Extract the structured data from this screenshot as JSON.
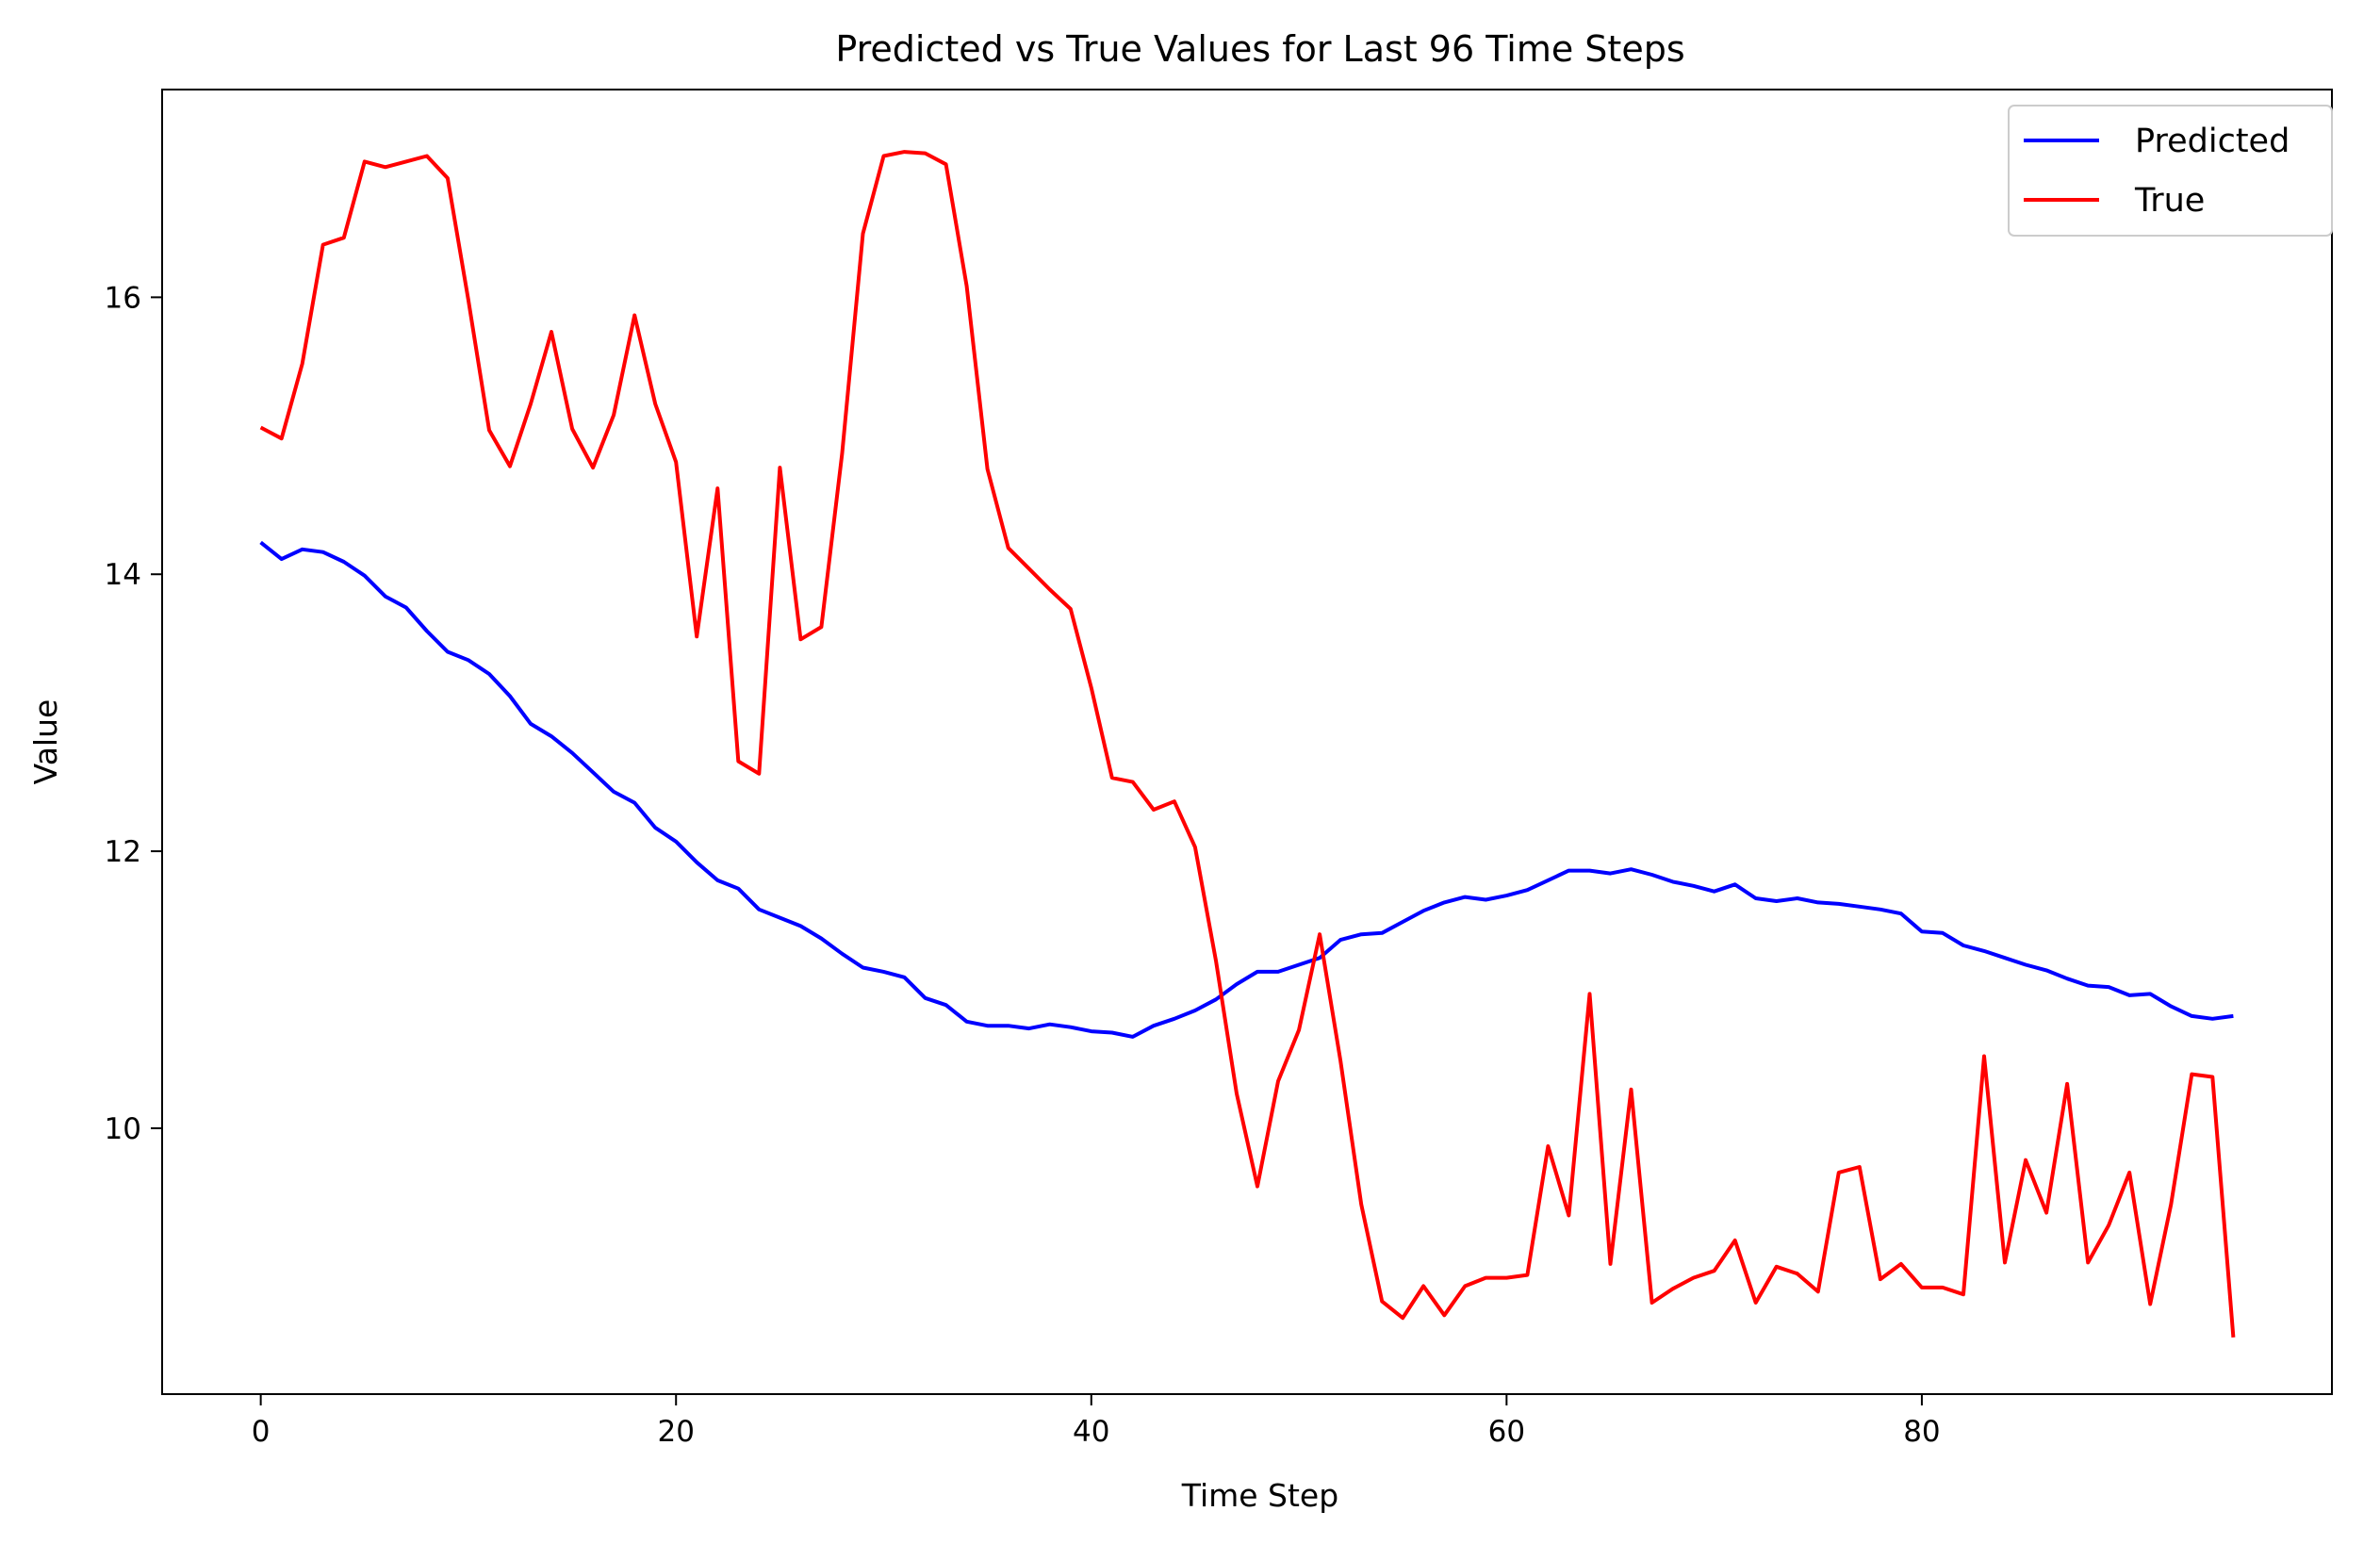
{
  "chart_data": {
    "type": "line",
    "title": "Predicted vs True Values for Last 96 Time Steps",
    "xlabel": "Time Step",
    "ylabel": "Value",
    "xlim": [
      -4.75,
      99.75
    ],
    "ylim": [
      8.08,
      17.5
    ],
    "xticks": [
      0,
      20,
      40,
      60,
      80
    ],
    "yticks": [
      10,
      12,
      14,
      16
    ],
    "grid": false,
    "legend_position": "top-right",
    "colors": {
      "predicted": "#0000ff",
      "true": "#ff0000"
    },
    "series": [
      {
        "name": "Predicted",
        "color": "#0000ff",
        "values": [
          14.23,
          14.11,
          14.18,
          14.16,
          14.09,
          13.99,
          13.84,
          13.76,
          13.59,
          13.44,
          13.38,
          13.28,
          13.12,
          12.92,
          12.83,
          12.71,
          12.57,
          12.43,
          12.35,
          12.17,
          12.07,
          11.92,
          11.79,
          11.73,
          11.58,
          11.52,
          11.46,
          11.37,
          11.26,
          11.16,
          11.13,
          11.09,
          10.94,
          10.89,
          10.77,
          10.74,
          10.74,
          10.72,
          10.75,
          10.73,
          10.7,
          10.69,
          10.66,
          10.74,
          10.79,
          10.85,
          10.93,
          11.04,
          11.13,
          11.13,
          11.18,
          11.23,
          11.36,
          11.4,
          11.41,
          11.49,
          11.57,
          11.63,
          11.67,
          11.65,
          11.68,
          11.72,
          11.79,
          11.86,
          11.86,
          11.84,
          11.87,
          11.83,
          11.78,
          11.75,
          11.71,
          11.76,
          11.66,
          11.64,
          11.66,
          11.63,
          11.62,
          11.6,
          11.58,
          11.55,
          11.42,
          11.41,
          11.32,
          11.28,
          11.23,
          11.18,
          11.14,
          11.08,
          11.03,
          11.02,
          10.96,
          10.97,
          10.88,
          10.81,
          10.79,
          10.81
        ]
      },
      {
        "name": "True",
        "color": "#ff0000",
        "values": [
          15.06,
          14.98,
          15.52,
          16.38,
          16.43,
          16.98,
          16.94,
          16.98,
          17.02,
          16.86,
          15.98,
          15.04,
          14.78,
          15.23,
          15.75,
          15.05,
          14.77,
          15.15,
          15.87,
          15.23,
          14.81,
          13.55,
          14.62,
          12.65,
          12.56,
          14.77,
          13.53,
          13.62,
          14.87,
          16.46,
          17.02,
          17.05,
          17.04,
          16.96,
          16.08,
          14.76,
          14.19,
          14.04,
          13.89,
          13.75,
          13.18,
          12.53,
          12.5,
          12.3,
          12.36,
          12.03,
          11.21,
          10.25,
          9.58,
          10.34,
          10.71,
          11.4,
          10.49,
          9.45,
          8.75,
          8.63,
          8.86,
          8.65,
          8.86,
          8.92,
          8.92,
          8.94,
          9.87,
          9.37,
          10.97,
          9.02,
          10.28,
          8.74,
          8.84,
          8.92,
          8.97,
          9.19,
          8.74,
          9.0,
          8.95,
          8.82,
          9.68,
          9.72,
          8.91,
          9.02,
          8.85,
          8.85,
          8.8,
          10.52,
          9.03,
          9.77,
          9.39,
          10.32,
          9.03,
          9.3,
          9.68,
          8.73,
          9.45,
          10.39,
          10.37,
          8.49
        ]
      }
    ]
  }
}
